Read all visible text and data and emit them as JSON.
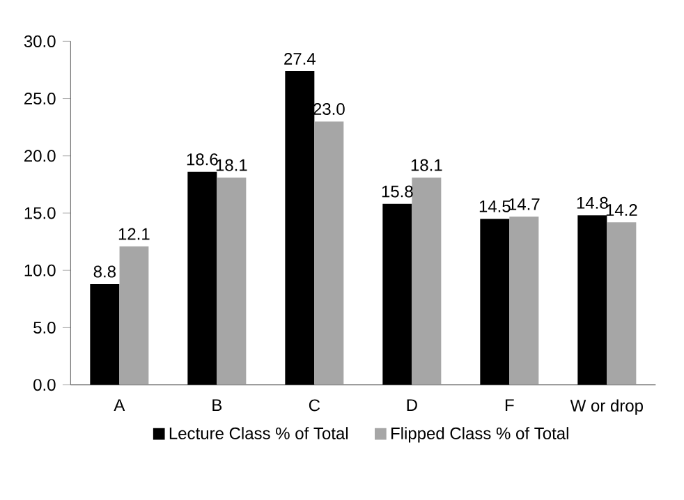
{
  "chart_data": {
    "type": "bar",
    "categories": [
      "A",
      "B",
      "C",
      "D",
      "F",
      "W or drop"
    ],
    "series": [
      {
        "name": "Lecture Class % of Total",
        "color": "#000000",
        "values": [
          8.8,
          18.6,
          27.4,
          15.8,
          14.5,
          14.8
        ],
        "value_labels": [
          "8.8",
          "18.6",
          "27.4",
          "15.8",
          "14.5",
          "14.8"
        ]
      },
      {
        "name": "Flipped Class % of Total",
        "color": "#a6a6a6",
        "values": [
          12.1,
          18.1,
          23.0,
          18.1,
          14.7,
          14.2
        ],
        "value_labels": [
          "12.1",
          "18.1",
          "23.0",
          "18.1",
          "14.7",
          "14.2"
        ]
      }
    ],
    "ylim": [
      0,
      30
    ],
    "yticks": [
      {
        "value": 0,
        "label": "0.0"
      },
      {
        "value": 5,
        "label": "5.0"
      },
      {
        "value": 10,
        "label": "10.0"
      },
      {
        "value": 15,
        "label": "15.0"
      },
      {
        "value": 20,
        "label": "20.0"
      },
      {
        "value": 25,
        "label": "25.0"
      },
      {
        "value": 30,
        "label": "30.0"
      }
    ],
    "grid": false,
    "legend": "bottom"
  }
}
